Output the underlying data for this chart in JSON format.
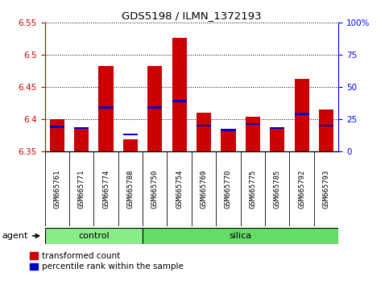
{
  "title": "GDS5198 / ILMN_1372193",
  "samples": [
    "GSM665761",
    "GSM665771",
    "GSM665774",
    "GSM665788",
    "GSM665750",
    "GSM665754",
    "GSM665769",
    "GSM665770",
    "GSM665775",
    "GSM665785",
    "GSM665792",
    "GSM665793"
  ],
  "control_count": 4,
  "red_values": [
    6.4,
    6.385,
    6.483,
    6.368,
    6.483,
    6.527,
    6.41,
    6.383,
    6.403,
    6.385,
    6.462,
    6.415
  ],
  "blue_values": [
    6.388,
    6.386,
    6.418,
    6.376,
    6.418,
    6.428,
    6.39,
    6.383,
    6.392,
    6.386,
    6.408,
    6.39
  ],
  "y_min": 6.35,
  "y_max": 6.55,
  "y_ticks": [
    6.35,
    6.4,
    6.45,
    6.5,
    6.55
  ],
  "y2_ticks": [
    0,
    25,
    50,
    75,
    100
  ],
  "y2_tick_labels": [
    "0",
    "25",
    "50",
    "75",
    "100%"
  ],
  "bar_width": 0.6,
  "red_color": "#CC0000",
  "blue_color": "#0000CC",
  "control_color": "#88EE88",
  "silica_color": "#66DD66",
  "bg_color": "#CCCCCC",
  "plot_bg": "#FFFFFF",
  "agent_label": "agent",
  "control_label": "control",
  "silica_label": "silica",
  "legend_red": "transformed count",
  "legend_blue": "percentile rank within the sample"
}
